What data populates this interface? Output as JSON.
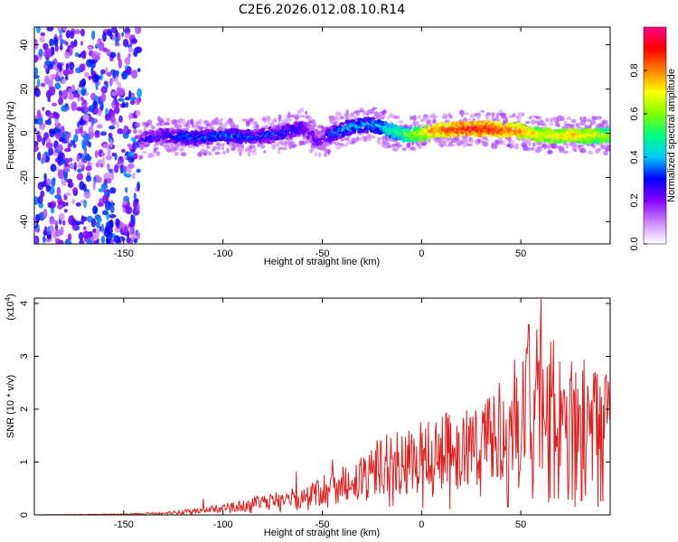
{
  "title": "C2E6.2026.012.08.10.R14",
  "chart_data": [
    {
      "type": "heatmap",
      "name": "spectrogram",
      "xlabel": "Height of straight line (km)",
      "ylabel": "Frequency (Hz)",
      "xlim": [
        -195,
        95
      ],
      "ylim": [
        -50,
        48
      ],
      "xticks": [
        -150,
        -100,
        -50,
        0,
        50
      ],
      "xtick_labels": [
        "-150",
        "-100",
        "-50",
        "0",
        "50"
      ],
      "yticks": [
        -40,
        -20,
        0,
        20,
        40
      ],
      "ytick_labels": [
        "-40",
        "-20",
        "0",
        "20",
        "40"
      ],
      "noise_region_x": [
        -195,
        -142
      ],
      "ridge": [
        {
          "x": -142,
          "y": -3,
          "amp": 0.3
        },
        {
          "x": -130,
          "y": -1,
          "amp": 0.35
        },
        {
          "x": -115,
          "y": -2,
          "amp": 0.4
        },
        {
          "x": -100,
          "y": -1,
          "amp": 0.4
        },
        {
          "x": -85,
          "y": -2,
          "amp": 0.38
        },
        {
          "x": -70,
          "y": 0,
          "amp": 0.38
        },
        {
          "x": -60,
          "y": 3,
          "amp": 0.35
        },
        {
          "x": -52,
          "y": -4,
          "amp": 0.3
        },
        {
          "x": -45,
          "y": 0,
          "amp": 0.4
        },
        {
          "x": -35,
          "y": 3,
          "amp": 0.45
        },
        {
          "x": -25,
          "y": 4,
          "amp": 0.45
        },
        {
          "x": -15,
          "y": 1,
          "amp": 0.55
        },
        {
          "x": -5,
          "y": -1,
          "amp": 0.65
        },
        {
          "x": 5,
          "y": 1,
          "amp": 0.85
        },
        {
          "x": 20,
          "y": 2,
          "amp": 0.95
        },
        {
          "x": 35,
          "y": 2,
          "amp": 0.95
        },
        {
          "x": 50,
          "y": 1,
          "amp": 0.85
        },
        {
          "x": 60,
          "y": -1,
          "amp": 0.75
        },
        {
          "x": 75,
          "y": -1,
          "amp": 0.8
        },
        {
          "x": 95,
          "y": -1,
          "amp": 0.7
        }
      ]
    },
    {
      "type": "colorbar",
      "name": "amplitude-colorbar",
      "label": "Normalized spectral amplitude",
      "range": [
        0,
        1
      ],
      "ticks": [
        0,
        0.2,
        0.4,
        0.6,
        0.8
      ],
      "tick_labels": [
        "0.0",
        "0.2",
        "0.4",
        "0.6",
        "0.8"
      ],
      "colors": [
        "#ffffff",
        "#cc88ff",
        "#8800ff",
        "#0000ff",
        "#00c8ff",
        "#00ff80",
        "#80ff00",
        "#ffff00",
        "#ff8000",
        "#ff0000",
        "#ff0088"
      ]
    },
    {
      "type": "line",
      "name": "snr",
      "xlabel": "Height of straight line (km)",
      "ylabel": "SNR (10 * v/v)",
      "y_multiplier": "(x10",
      "y_multiplier_exp": "4",
      "y_multiplier_close": ")",
      "xlim": [
        -195,
        95
      ],
      "ylim": [
        0,
        4.1
      ],
      "xticks": [
        -150,
        -100,
        -50,
        0,
        50
      ],
      "xtick_labels": [
        "-150",
        "-100",
        "-50",
        "0",
        "50"
      ],
      "yticks": [
        0,
        1,
        2,
        3,
        4
      ],
      "ytick_labels": [
        "0",
        "1",
        "2",
        "3",
        "4"
      ],
      "color": "#e02020",
      "envelope": [
        {
          "x": -195,
          "y": 0.0
        },
        {
          "x": -150,
          "y": 0.02
        },
        {
          "x": -130,
          "y": 0.05
        },
        {
          "x": -110,
          "y": 0.12
        },
        {
          "x": -100,
          "y": 0.2
        },
        {
          "x": -90,
          "y": 0.25
        },
        {
          "x": -75,
          "y": 0.4
        },
        {
          "x": -60,
          "y": 0.5
        },
        {
          "x": -45,
          "y": 0.8
        },
        {
          "x": -30,
          "y": 1.1
        },
        {
          "x": -20,
          "y": 1.4
        },
        {
          "x": -10,
          "y": 1.5
        },
        {
          "x": 0,
          "y": 1.6
        },
        {
          "x": 10,
          "y": 1.8
        },
        {
          "x": 20,
          "y": 1.8
        },
        {
          "x": 30,
          "y": 2.1
        },
        {
          "x": 40,
          "y": 2.4
        },
        {
          "x": 50,
          "y": 2.8
        },
        {
          "x": 60,
          "y": 3.3
        },
        {
          "x": 70,
          "y": 3.0
        },
        {
          "x": 80,
          "y": 2.7
        },
        {
          "x": 95,
          "y": 2.5
        }
      ],
      "peaks": [
        {
          "x": 60,
          "y": 4.08
        },
        {
          "x": 54,
          "y": 3.6
        },
        {
          "x": -110,
          "y": 0.3
        },
        {
          "x": -63,
          "y": 0.82
        },
        {
          "x": -45,
          "y": 1.05
        },
        {
          "x": 93,
          "y": 2.65
        }
      ]
    }
  ]
}
